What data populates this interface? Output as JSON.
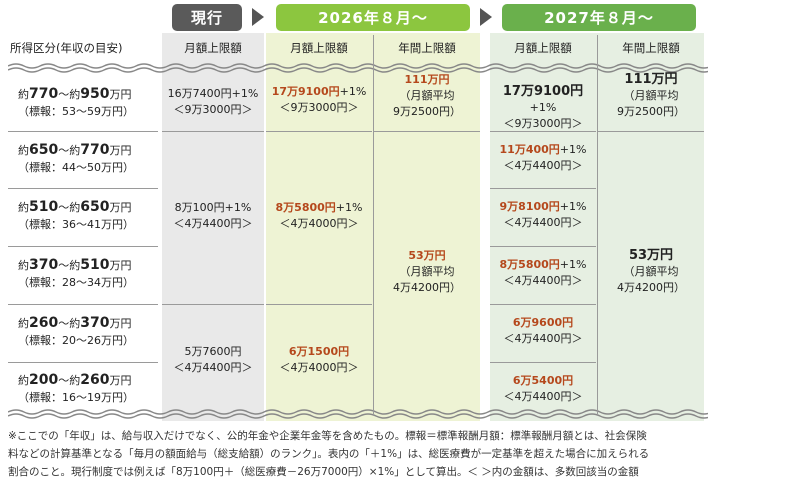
{
  "headers": {
    "current": "現行",
    "y2026": "2026年８月～",
    "y2027": "2027年８月～",
    "income_col": "所得区分(年収の目安)",
    "monthly_limit": "月額上限額",
    "annual_limit": "年間上限額"
  },
  "rows": [
    {
      "income_line1_pre": "約",
      "income_line1_big1": "770",
      "income_line1_mid": "～約",
      "income_line1_big2": "950",
      "income_line1_post": "万円",
      "income_line2": "（標報：53～59万円）"
    },
    {
      "income_line1_pre": "約",
      "income_line1_big1": "650",
      "income_line1_mid": "～約",
      "income_line1_big2": "770",
      "income_line1_post": "万円",
      "income_line2": "（標報：44～50万円）"
    },
    {
      "income_line1_pre": "約",
      "income_line1_big1": "510",
      "income_line1_mid": "～約",
      "income_line1_big2": "650",
      "income_line1_post": "万円",
      "income_line2": "（標報：36～41万円）"
    },
    {
      "income_line1_pre": "約",
      "income_line1_big1": "370",
      "income_line1_mid": "～約",
      "income_line1_big2": "510",
      "income_line1_post": "万円",
      "income_line2": "（標報：28～34万円）"
    },
    {
      "income_line1_pre": "約",
      "income_line1_big1": "260",
      "income_line1_mid": "～約",
      "income_line1_big2": "370",
      "income_line1_post": "万円",
      "income_line2": "（標報：20～26万円）"
    },
    {
      "income_line1_pre": "約",
      "income_line1_big1": "200",
      "income_line1_mid": "～約",
      "income_line1_big2": "260",
      "income_line1_post": "万円",
      "income_line2": "（標報：16～19万円）"
    }
  ],
  "current": {
    "g1_l1": "16万7400円+1%",
    "g1_l2": "＜9万3000円＞",
    "g2_l1": "8万100円+1%",
    "g2_l2": "＜4万4400円＞",
    "g3_l1": "5万7600円",
    "g3_l2": "＜4万4400円＞"
  },
  "y2026_monthly": {
    "g1_red": "17万9100円",
    "g1_suffix": "+1%",
    "g1_l2": "＜9万3000円＞",
    "g2_red": "8万5800円",
    "g2_suffix": "+1%",
    "g2_l2": "＜4万4000円＞",
    "g3_red": "6万1500円",
    "g3_l2": "＜4万4000円＞"
  },
  "y2026_annual": {
    "g1_red": "111万円",
    "g1_l2": "（月額平均",
    "g1_l3": "9万2500円）",
    "g2_red": "53万円",
    "g2_l2": "（月額平均",
    "g2_l3": "4万4200円）"
  },
  "y2027_monthly": {
    "r1_black": "17万9100円",
    "r1_suffix": "+1%",
    "r1_l2": "＜9万3000円＞",
    "r2_red": "11万400円",
    "r2_suffix": "+1%",
    "r2_l2": "＜4万4400円＞",
    "r3_red": "9万8100円",
    "r3_suffix": "+1%",
    "r3_l2": "＜4万4400円＞",
    "r4_red": "8万5800円",
    "r4_suffix": "+1%",
    "r4_l2": "＜4万4400円＞",
    "r5_red": "6万9600円",
    "r5_l2": "＜4万4400円＞",
    "r6_red": "6万5400円",
    "r6_l2": "＜4万4400円＞"
  },
  "y2027_annual": {
    "g1_black": "111万円",
    "g1_l2": "（月額平均",
    "g1_l3": "9万2500円）",
    "g2_black": "53万円",
    "g2_l2": "（月額平均",
    "g2_l3": "4万4200円）"
  },
  "note": {
    "l1": "※ここでの「年収」は、給与収入だけでなく、公的年金や企業年金等を含めたもの。標報＝標準報酬月額：標準報酬月額とは、社会保険",
    "l2": "料などの計算基準となる「毎月の額面給与（総支給額）のランク」。表内の「＋1%」は、総医療費が一定基準を超えた場合に加えられる",
    "l3": "割合のこと。現行制度では例えば「8万100円＋（総医療費－26万7000円）×1%」として算出。＜ ＞内の金額は、多数回該当の金額"
  },
  "colors": {
    "red": "#b5481c",
    "green2026": "#8cc63f",
    "green2027": "#6ab04c",
    "grey": "#5a5a5a"
  }
}
